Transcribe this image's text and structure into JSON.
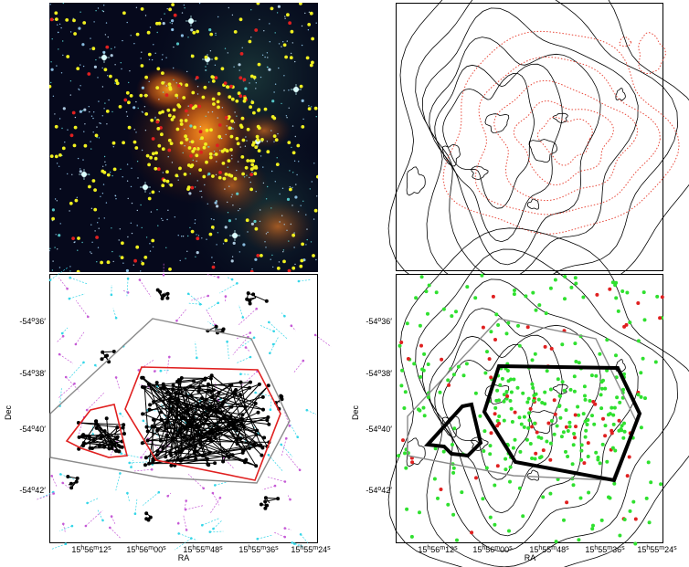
{
  "figure": {
    "panels": [
      {
        "id": "top-left",
        "content": "infrared-image-with-sources"
      },
      {
        "id": "top-right",
        "content": "contour-map"
      },
      {
        "id": "bottom-left",
        "content": "mst-cluster-map"
      },
      {
        "id": "bottom-right",
        "content": "contours-and-sources"
      }
    ],
    "axes": {
      "xlabel": "RA",
      "ylabel": "Dec",
      "ra_ticks": [
        {
          "h": "15",
          "m": "56",
          "s": "12"
        },
        {
          "h": "15",
          "m": "56",
          "s": "00"
        },
        {
          "h": "15",
          "m": "55",
          "s": "48"
        },
        {
          "h": "15",
          "m": "55",
          "s": "36"
        },
        {
          "h": "15",
          "m": "55",
          "s": "24"
        }
      ],
      "dec_ticks": [
        {
          "deg": "-54",
          "min": "36"
        },
        {
          "deg": "-54",
          "min": "38"
        },
        {
          "deg": "-54",
          "min": "40"
        },
        {
          "deg": "-54",
          "min": "42"
        }
      ]
    },
    "colors": {
      "contour_black": "#000000",
      "contour_red": "#e8483a",
      "mst_cyan": "#35d6e8",
      "mst_magenta": "#c55ad6",
      "cluster_red": "#e02020",
      "hull_gray": "#8a8a8a",
      "source_green": "#2fe02f",
      "source_red": "#e02020",
      "source_yellow": "#f0f020"
    }
  }
}
